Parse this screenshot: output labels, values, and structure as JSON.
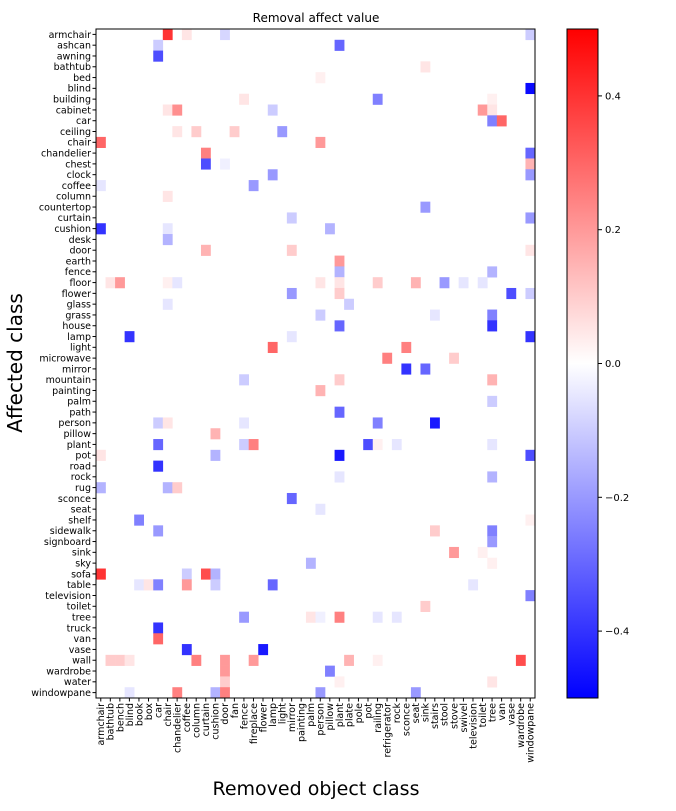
{
  "chart_data": {
    "type": "heatmap",
    "title": "Removal affect value",
    "xlabel": "Removed object class",
    "ylabel": "Affected class",
    "x_categories": [
      "armchair",
      "bathtub",
      "bench",
      "blind",
      "book",
      "box",
      "car",
      "chair",
      "chandelier",
      "coffee",
      "column",
      "curtain",
      "cushion",
      "door",
      "fan",
      "fence",
      "fireplace",
      "flower",
      "lamp",
      "light",
      "mirror",
      "painting",
      "palm",
      "person",
      "pillow",
      "plant",
      "plate",
      "pole",
      "pot",
      "railing",
      "refrigerator",
      "rock",
      "sconce",
      "seat",
      "sink",
      "stairs",
      "stool",
      "stove",
      "swivel",
      "television",
      "toilet",
      "tree",
      "van",
      "vase",
      "wardrobe",
      "windowpane"
    ],
    "y_categories": [
      "armchair",
      "ashcan",
      "awning",
      "bathtub",
      "bed",
      "blind",
      "building",
      "cabinet",
      "car",
      "ceiling",
      "chair",
      "chandelier",
      "chest",
      "clock",
      "coffee",
      "column",
      "countertop",
      "curtain",
      "cushion",
      "desk",
      "door",
      "earth",
      "fence",
      "floor",
      "flower",
      "glass",
      "grass",
      "house",
      "lamp",
      "light",
      "microwave",
      "mirror",
      "mountain",
      "painting",
      "palm",
      "path",
      "person",
      "pillow",
      "plant",
      "pot",
      "road",
      "rock",
      "rug",
      "sconce",
      "seat",
      "shelf",
      "sidewalk",
      "signboard",
      "sink",
      "sky",
      "sofa",
      "table",
      "television",
      "toilet",
      "tree",
      "truck",
      "van",
      "vase",
      "wall",
      "wardrobe",
      "water",
      "windowpane"
    ],
    "colorbar": {
      "min": -0.5,
      "max": 0.5,
      "ticks": [
        -0.4,
        -0.2,
        0.0,
        0.2,
        0.4
      ],
      "tick_labels": [
        "−0.4",
        "−0.2",
        "0.0",
        "0.2",
        "0.4"
      ],
      "colormap": "bwr"
    },
    "cells": [
      {
        "y": "armchair",
        "x": "chair",
        "v": 0.4
      },
      {
        "y": "armchair",
        "x": "coffee",
        "v": 0.05
      },
      {
        "y": "armchair",
        "x": "door",
        "v": -0.08
      },
      {
        "y": "armchair",
        "x": "windowpane",
        "v": -0.1
      },
      {
        "y": "ashcan",
        "x": "car",
        "v": -0.1
      },
      {
        "y": "ashcan",
        "x": "plant",
        "v": -0.3
      },
      {
        "y": "awning",
        "x": "car",
        "v": -0.35
      },
      {
        "y": "bathtub",
        "x": "sink",
        "v": 0.05
      },
      {
        "y": "bed",
        "x": "person",
        "v": 0.03
      },
      {
        "y": "blind",
        "x": "windowpane",
        "v": -0.48
      },
      {
        "y": "building",
        "x": "fence",
        "v": 0.05
      },
      {
        "y": "building",
        "x": "railing",
        "v": -0.25
      },
      {
        "y": "building",
        "x": "tree",
        "v": 0.03
      },
      {
        "y": "cabinet",
        "x": "chair",
        "v": 0.05
      },
      {
        "y": "cabinet",
        "x": "chandelier",
        "v": 0.22
      },
      {
        "y": "cabinet",
        "x": "lamp",
        "v": -0.1
      },
      {
        "y": "cabinet",
        "x": "toilet",
        "v": 0.2
      },
      {
        "y": "cabinet",
        "x": "tree",
        "v": 0.05
      },
      {
        "y": "car",
        "x": "tree",
        "v": -0.25
      },
      {
        "y": "car",
        "x": "van",
        "v": 0.3
      },
      {
        "y": "ceiling",
        "x": "chandelier",
        "v": 0.05
      },
      {
        "y": "ceiling",
        "x": "column",
        "v": 0.1
      },
      {
        "y": "ceiling",
        "x": "fan",
        "v": 0.1
      },
      {
        "y": "ceiling",
        "x": "light",
        "v": -0.2
      },
      {
        "y": "chair",
        "x": "armchair",
        "v": 0.3
      },
      {
        "y": "chair",
        "x": "person",
        "v": 0.2
      },
      {
        "y": "chandelier",
        "x": "curtain",
        "v": 0.25
      },
      {
        "y": "chandelier",
        "x": "windowpane",
        "v": -0.3
      },
      {
        "y": "chest",
        "x": "curtain",
        "v": -0.35
      },
      {
        "y": "chest",
        "x": "door",
        "v": -0.03
      },
      {
        "y": "chest",
        "x": "windowpane",
        "v": 0.15
      },
      {
        "y": "clock",
        "x": "lamp",
        "v": -0.2
      },
      {
        "y": "clock",
        "x": "windowpane",
        "v": -0.2
      },
      {
        "y": "coffee",
        "x": "armchair",
        "v": -0.05
      },
      {
        "y": "coffee",
        "x": "fireplace",
        "v": -0.2
      },
      {
        "y": "column",
        "x": "chair",
        "v": 0.05
      },
      {
        "y": "countertop",
        "x": "sink",
        "v": -0.2
      },
      {
        "y": "curtain",
        "x": "mirror",
        "v": -0.1
      },
      {
        "y": "curtain",
        "x": "windowpane",
        "v": -0.2
      },
      {
        "y": "cushion",
        "x": "armchair",
        "v": -0.4
      },
      {
        "y": "cushion",
        "x": "chair",
        "v": -0.05
      },
      {
        "y": "cushion",
        "x": "pillow",
        "v": -0.15
      },
      {
        "y": "desk",
        "x": "chair",
        "v": -0.15
      },
      {
        "y": "door",
        "x": "curtain",
        "v": 0.15
      },
      {
        "y": "door",
        "x": "mirror",
        "v": 0.1
      },
      {
        "y": "door",
        "x": "windowpane",
        "v": 0.05
      },
      {
        "y": "earth",
        "x": "plant",
        "v": 0.2
      },
      {
        "y": "fence",
        "x": "plant",
        "v": -0.15
      },
      {
        "y": "fence",
        "x": "tree",
        "v": -0.15
      },
      {
        "y": "floor",
        "x": "bathtub",
        "v": 0.05
      },
      {
        "y": "floor",
        "x": "bench",
        "v": 0.2
      },
      {
        "y": "floor",
        "x": "chair",
        "v": 0.03
      },
      {
        "y": "floor",
        "x": "chandelier",
        "v": -0.05
      },
      {
        "y": "floor",
        "x": "person",
        "v": 0.05
      },
      {
        "y": "floor",
        "x": "plant",
        "v": 0.05
      },
      {
        "y": "floor",
        "x": "railing",
        "v": 0.1
      },
      {
        "y": "floor",
        "x": "seat",
        "v": 0.15
      },
      {
        "y": "floor",
        "x": "stool",
        "v": -0.2
      },
      {
        "y": "floor",
        "x": "swivel",
        "v": -0.05
      },
      {
        "y": "floor",
        "x": "toilet",
        "v": -0.05
      },
      {
        "y": "flower",
        "x": "mirror",
        "v": -0.2
      },
      {
        "y": "flower",
        "x": "plant",
        "v": 0.1
      },
      {
        "y": "flower",
        "x": "vase",
        "v": -0.35
      },
      {
        "y": "flower",
        "x": "windowpane",
        "v": -0.1
      },
      {
        "y": "glass",
        "x": "chair",
        "v": -0.05
      },
      {
        "y": "glass",
        "x": "plate",
        "v": -0.1
      },
      {
        "y": "grass",
        "x": "person",
        "v": -0.1
      },
      {
        "y": "grass",
        "x": "stairs",
        "v": -0.05
      },
      {
        "y": "grass",
        "x": "tree",
        "v": -0.25
      },
      {
        "y": "house",
        "x": "plant",
        "v": -0.3
      },
      {
        "y": "house",
        "x": "tree",
        "v": -0.4
      },
      {
        "y": "lamp",
        "x": "blind",
        "v": -0.4
      },
      {
        "y": "lamp",
        "x": "mirror",
        "v": -0.05
      },
      {
        "y": "lamp",
        "x": "windowpane",
        "v": -0.4
      },
      {
        "y": "light",
        "x": "lamp",
        "v": 0.3
      },
      {
        "y": "light",
        "x": "sconce",
        "v": 0.25
      },
      {
        "y": "microwave",
        "x": "refrigerator",
        "v": 0.25
      },
      {
        "y": "microwave",
        "x": "stove",
        "v": 0.1
      },
      {
        "y": "mirror",
        "x": "sconce",
        "v": -0.4
      },
      {
        "y": "mirror",
        "x": "sink",
        "v": -0.3
      },
      {
        "y": "mountain",
        "x": "fence",
        "v": -0.1
      },
      {
        "y": "mountain",
        "x": "plant",
        "v": 0.1
      },
      {
        "y": "mountain",
        "x": "tree",
        "v": 0.15
      },
      {
        "y": "painting",
        "x": "person",
        "v": 0.15
      },
      {
        "y": "palm",
        "x": "tree",
        "v": -0.1
      },
      {
        "y": "path",
        "x": "plant",
        "v": -0.3
      },
      {
        "y": "person",
        "x": "car",
        "v": -0.1
      },
      {
        "y": "person",
        "x": "chair",
        "v": 0.05
      },
      {
        "y": "person",
        "x": "fence",
        "v": -0.05
      },
      {
        "y": "person",
        "x": "railing",
        "v": -0.25
      },
      {
        "y": "person",
        "x": "stairs",
        "v": -0.45
      },
      {
        "y": "pillow",
        "x": "cushion",
        "v": 0.15
      },
      {
        "y": "plant",
        "x": "car",
        "v": -0.3
      },
      {
        "y": "plant",
        "x": "fence",
        "v": -0.1
      },
      {
        "y": "plant",
        "x": "fireplace",
        "v": 0.25
      },
      {
        "y": "plant",
        "x": "pot",
        "v": -0.35
      },
      {
        "y": "plant",
        "x": "railing",
        "v": 0.03
      },
      {
        "y": "plant",
        "x": "rock",
        "v": -0.05
      },
      {
        "y": "plant",
        "x": "tree",
        "v": -0.05
      },
      {
        "y": "pot",
        "x": "armchair",
        "v": 0.05
      },
      {
        "y": "pot",
        "x": "cushion",
        "v": -0.15
      },
      {
        "y": "pot",
        "x": "plant",
        "v": -0.45
      },
      {
        "y": "pot",
        "x": "windowpane",
        "v": -0.35
      },
      {
        "y": "road",
        "x": "car",
        "v": -0.4
      },
      {
        "y": "rock",
        "x": "plant",
        "v": -0.05
      },
      {
        "y": "rock",
        "x": "tree",
        "v": -0.15
      },
      {
        "y": "rug",
        "x": "armchair",
        "v": -0.15
      },
      {
        "y": "rug",
        "x": "chair",
        "v": -0.15
      },
      {
        "y": "rug",
        "x": "chandelier",
        "v": 0.1
      },
      {
        "y": "sconce",
        "x": "mirror",
        "v": -0.3
      },
      {
        "y": "seat",
        "x": "person",
        "v": -0.05
      },
      {
        "y": "shelf",
        "x": "book",
        "v": -0.25
      },
      {
        "y": "shelf",
        "x": "windowpane",
        "v": 0.03
      },
      {
        "y": "sidewalk",
        "x": "car",
        "v": -0.2
      },
      {
        "y": "sidewalk",
        "x": "stairs",
        "v": 0.1
      },
      {
        "y": "sidewalk",
        "x": "tree",
        "v": -0.25
      },
      {
        "y": "signboard",
        "x": "tree",
        "v": -0.2
      },
      {
        "y": "sink",
        "x": "stove",
        "v": 0.2
      },
      {
        "y": "sink",
        "x": "toilet",
        "v": 0.03
      },
      {
        "y": "sky",
        "x": "palm",
        "v": -0.15
      },
      {
        "y": "sky",
        "x": "tree",
        "v": 0.03
      },
      {
        "y": "sofa",
        "x": "armchair",
        "v": 0.4
      },
      {
        "y": "sofa",
        "x": "coffee",
        "v": -0.1
      },
      {
        "y": "sofa",
        "x": "curtain",
        "v": 0.35
      },
      {
        "y": "sofa",
        "x": "cushion",
        "v": -0.15
      },
      {
        "y": "table",
        "x": "book",
        "v": -0.05
      },
      {
        "y": "table",
        "x": "box",
        "v": 0.05
      },
      {
        "y": "table",
        "x": "car",
        "v": -0.25
      },
      {
        "y": "table",
        "x": "coffee",
        "v": 0.2
      },
      {
        "y": "table",
        "x": "cushion",
        "v": -0.1
      },
      {
        "y": "table",
        "x": "lamp",
        "v": -0.3
      },
      {
        "y": "table",
        "x": "television",
        "v": -0.05
      },
      {
        "y": "television",
        "x": "windowpane",
        "v": -0.25
      },
      {
        "y": "toilet",
        "x": "sink",
        "v": 0.1
      },
      {
        "y": "tree",
        "x": "fence",
        "v": -0.2
      },
      {
        "y": "tree",
        "x": "palm",
        "v": 0.05
      },
      {
        "y": "tree",
        "x": "person",
        "v": -0.03
      },
      {
        "y": "tree",
        "x": "plant",
        "v": 0.25
      },
      {
        "y": "tree",
        "x": "railing",
        "v": -0.05
      },
      {
        "y": "tree",
        "x": "rock",
        "v": -0.05
      },
      {
        "y": "truck",
        "x": "car",
        "v": -0.4
      },
      {
        "y": "van",
        "x": "car",
        "v": 0.3
      },
      {
        "y": "vase",
        "x": "coffee",
        "v": -0.4
      },
      {
        "y": "vase",
        "x": "flower",
        "v": -0.45
      },
      {
        "y": "wall",
        "x": "bathtub",
        "v": 0.1
      },
      {
        "y": "wall",
        "x": "bench",
        "v": 0.1
      },
      {
        "y": "wall",
        "x": "blind",
        "v": 0.05
      },
      {
        "y": "wall",
        "x": "column",
        "v": 0.25
      },
      {
        "y": "wall",
        "x": "door",
        "v": 0.2
      },
      {
        "y": "wall",
        "x": "fireplace",
        "v": 0.2
      },
      {
        "y": "wall",
        "x": "plate",
        "v": 0.15
      },
      {
        "y": "wall",
        "x": "railing",
        "v": 0.03
      },
      {
        "y": "wall",
        "x": "wardrobe",
        "v": 0.35
      },
      {
        "y": "wardrobe",
        "x": "door",
        "v": 0.2
      },
      {
        "y": "wardrobe",
        "x": "pillow",
        "v": -0.25
      },
      {
        "y": "water",
        "x": "door",
        "v": 0.1
      },
      {
        "y": "water",
        "x": "plant",
        "v": 0.03
      },
      {
        "y": "water",
        "x": "tree",
        "v": 0.05
      },
      {
        "y": "windowpane",
        "x": "blind",
        "v": -0.05
      },
      {
        "y": "windowpane",
        "x": "chandelier",
        "v": 0.25
      },
      {
        "y": "windowpane",
        "x": "cushion",
        "v": -0.15
      },
      {
        "y": "windowpane",
        "x": "door",
        "v": 0.25
      },
      {
        "y": "windowpane",
        "x": "person",
        "v": -0.2
      },
      {
        "y": "windowpane",
        "x": "seat",
        "v": -0.2
      }
    ]
  }
}
